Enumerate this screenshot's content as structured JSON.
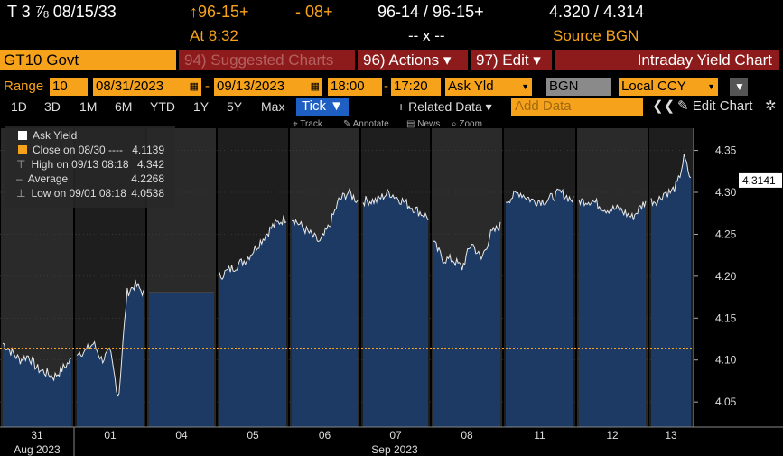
{
  "header": {
    "security": "T 3 ⅞ 08/15/33",
    "price_ask": "↑96-15+",
    "change": "- 08+",
    "bid_ask": "96-14 / 96-15+",
    "yields": "4.320 / 4.314",
    "at_time": "At 8:32",
    "bidask_sep": "-- x --",
    "source": "Source BGN"
  },
  "menubar": {
    "ticker": "GT10 Govt",
    "suggested": "94) Suggested Charts",
    "actions": "96) Actions ▾",
    "edit": "97) Edit ▾",
    "title": "Intraday Yield Chart"
  },
  "controls": {
    "range_label": "Range",
    "range_count": "10",
    "start_date": "08/31/2023",
    "dash": "-",
    "end_date": "09/13/2023",
    "start_time": "18:00",
    "end_time": "17:20",
    "field": "Ask Yld",
    "source": "BGN",
    "currency": "Local CCY"
  },
  "tabs": {
    "items": [
      "1D",
      "3D",
      "1M",
      "6M",
      "YTD",
      "1Y",
      "5Y",
      "Max"
    ],
    "tick": "Tick ▼",
    "related": "+ Related Data ▾",
    "add_data_placeholder": "Add Data",
    "edit_chart": "✎ Edit Chart"
  },
  "toolbar": {
    "track": "⌖ Track",
    "annotate": "✎ Annotate",
    "news": "▤ News",
    "zoom": "⌕ Zoom"
  },
  "legend": {
    "ask_yield": "Ask Yield",
    "ask_value": "4.3141",
    "close_label": "Close on 08/30 ----",
    "close_value": "4.1139",
    "high_label": "High on 09/13 08:18",
    "high_value": "4.342",
    "avg_label": "Average",
    "avg_value": "4.2268",
    "low_label": "Low on 09/01 08:18",
    "low_value": "4.0538"
  },
  "colors": {
    "orange": "#f7a21b",
    "fill": "#1c3a63",
    "shade": "#2a2a2a",
    "red": "#8d1b1b"
  },
  "chart_data": {
    "type": "area",
    "title": "Intraday Yield Chart",
    "ylabel": "",
    "ylim": [
      4.02,
      4.37
    ],
    "yticks": [
      4.05,
      4.1,
      4.15,
      4.2,
      4.25,
      4.3,
      4.35
    ],
    "ytick_labels": [
      "4.05",
      "4.10",
      "4.15",
      "4.20",
      "4.25",
      "4.30",
      "4.35"
    ],
    "last_value": "4.3141",
    "reference_close": 4.1139,
    "x_day_labels": [
      "31",
      "01",
      "04",
      "05",
      "06",
      "07",
      "08",
      "11",
      "12",
      "13"
    ],
    "x_month_labels": [
      "Aug 2023",
      "Sep 2023"
    ],
    "sessions": [
      {
        "day": "31",
        "values": [
          4.12,
          4.11,
          4.1,
          4.105,
          4.09,
          4.085,
          4.08,
          4.09,
          4.1
        ]
      },
      {
        "day": "01",
        "values": [
          4.11,
          4.11,
          4.12,
          4.1,
          4.11,
          4.0538,
          4.18,
          4.19,
          4.18
        ]
      },
      {
        "day": "04",
        "values": [
          4.18,
          4.18
        ]
      },
      {
        "day": "05",
        "values": [
          4.2,
          4.21,
          4.22,
          4.24,
          4.26,
          4.27
        ]
      },
      {
        "day": "06",
        "values": [
          4.27,
          4.26,
          4.25,
          4.24,
          4.26,
          4.29,
          4.3,
          4.29
        ]
      },
      {
        "day": "07",
        "values": [
          4.29,
          4.29,
          4.3,
          4.29,
          4.28,
          4.27
        ]
      },
      {
        "day": "08",
        "values": [
          4.24,
          4.22,
          4.22,
          4.21,
          4.24,
          4.22,
          4.25,
          4.26
        ]
      },
      {
        "day": "11",
        "values": [
          4.29,
          4.3,
          4.29,
          4.29,
          4.3,
          4.29
        ]
      },
      {
        "day": "12",
        "values": [
          4.29,
          4.29,
          4.28,
          4.28,
          4.27,
          4.29
        ]
      },
      {
        "day": "13",
        "values": [
          4.29,
          4.29,
          4.3,
          4.3,
          4.31,
          4.342,
          4.3141
        ]
      }
    ],
    "series": [
      {
        "name": "Ask Yield"
      }
    ]
  }
}
